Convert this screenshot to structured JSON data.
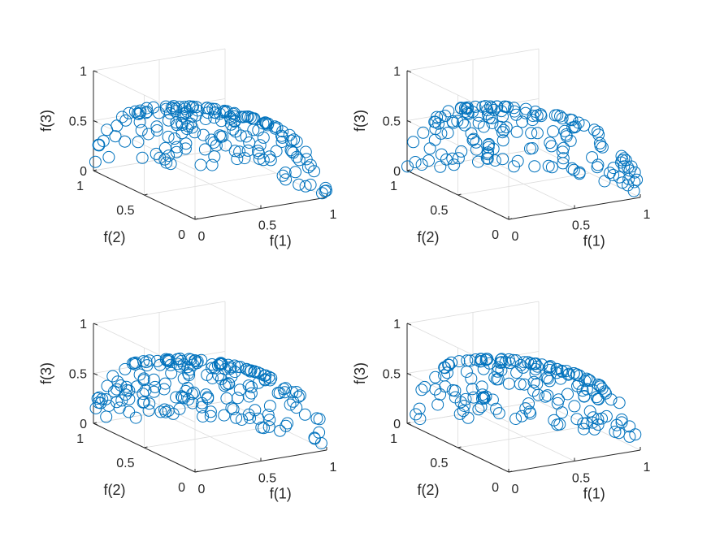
{
  "figure": {
    "colors": {
      "marker": "#0072bd",
      "axis": "#262626",
      "grid": "#dcdcdc",
      "background": "#ffffff"
    }
  },
  "chart_data": [
    {
      "type": "scatter",
      "subtype": "3d-scatter",
      "marker": "open-circle",
      "grid": true,
      "xlabel": "f(1)",
      "ylabel": "f(2)",
      "zlabel": "f(3)",
      "xlim": [
        0,
        1
      ],
      "ylim": [
        0,
        1
      ],
      "zlim": [
        0,
        1
      ],
      "xticks": [
        "0",
        "0.5",
        "1"
      ],
      "yticks": [
        "0",
        "0.5",
        "1"
      ],
      "zticks": [
        "0",
        "0.5",
        "1"
      ],
      "surface": "spherical-octant",
      "n_points": 180,
      "seed": 11
    },
    {
      "type": "scatter",
      "subtype": "3d-scatter",
      "marker": "open-circle",
      "grid": true,
      "xlabel": "f(1)",
      "ylabel": "f(2)",
      "zlabel": "f(3)",
      "xlim": [
        0,
        1
      ],
      "ylim": [
        0,
        1
      ],
      "zlim": [
        0,
        1
      ],
      "xticks": [
        "0",
        "0.5",
        "1"
      ],
      "yticks": [
        "0",
        "0.5",
        "1"
      ],
      "zticks": [
        "0",
        "0.5",
        "1"
      ],
      "surface": "spherical-octant",
      "n_points": 160,
      "seed": 23
    },
    {
      "type": "scatter",
      "subtype": "3d-scatter",
      "marker": "open-circle",
      "grid": true,
      "xlabel": "f(1)",
      "ylabel": "f(2)",
      "zlabel": "f(3)",
      "xlim": [
        0,
        1
      ],
      "ylim": [
        0,
        1
      ],
      "zlim": [
        0,
        1
      ],
      "xticks": [
        "0",
        "0.5",
        "1"
      ],
      "yticks": [
        "0",
        "0.5",
        "1"
      ],
      "zticks": [
        "0",
        "0.5",
        "1"
      ],
      "surface": "spherical-octant",
      "n_points": 190,
      "seed": 37
    },
    {
      "type": "scatter",
      "subtype": "3d-scatter",
      "marker": "open-circle",
      "grid": true,
      "xlabel": "f(1)",
      "ylabel": "f(2)",
      "zlabel": "f(3)",
      "xlim": [
        0,
        1
      ],
      "ylim": [
        0,
        1
      ],
      "zlim": [
        0,
        1
      ],
      "xticks": [
        "0",
        "0.5",
        "1"
      ],
      "yticks": [
        "0",
        "0.5",
        "1"
      ],
      "zticks": [
        "0",
        "0.5",
        "1"
      ],
      "surface": "spherical-octant",
      "n_points": 170,
      "seed": 53
    }
  ]
}
